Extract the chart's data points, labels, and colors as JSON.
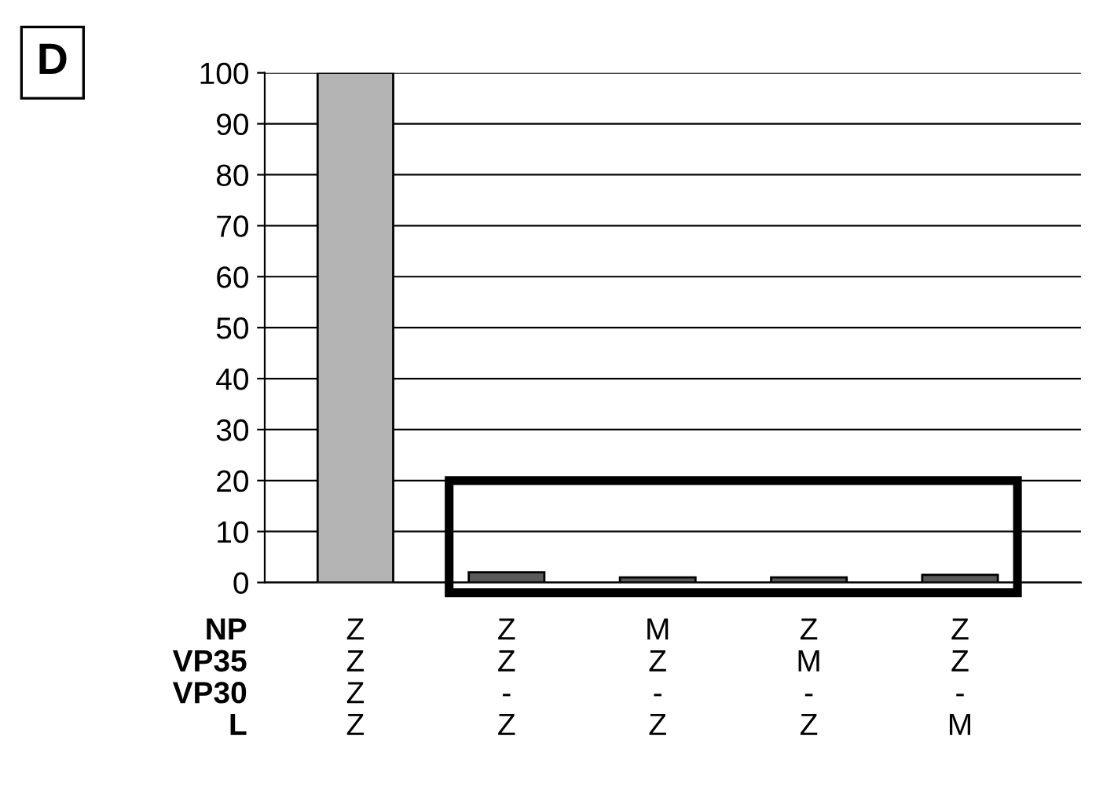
{
  "chart_data": {
    "type": "bar",
    "title": "D",
    "categories": [
      "Z\nZ\nZ\nZ",
      "Z\nZ\n-\nZ",
      "M\nZ\n-\nZ",
      "Z\nM\n-\nZ",
      "Z\nZ\n-\nM"
    ],
    "values": [
      100,
      2,
      1,
      1,
      1.5
    ],
    "colors": [
      "#b4b4b4",
      "#5a5a5a",
      "#5a5a5a",
      "#5a5a5a",
      "#5a5a5a"
    ],
    "ylim": [
      0,
      100
    ],
    "yticks": [
      0,
      10,
      20,
      30,
      40,
      50,
      60,
      70,
      80,
      90,
      100
    ],
    "grid": "y",
    "annotations": [
      "NP",
      "VP35",
      "VP30",
      "L"
    ]
  }
}
